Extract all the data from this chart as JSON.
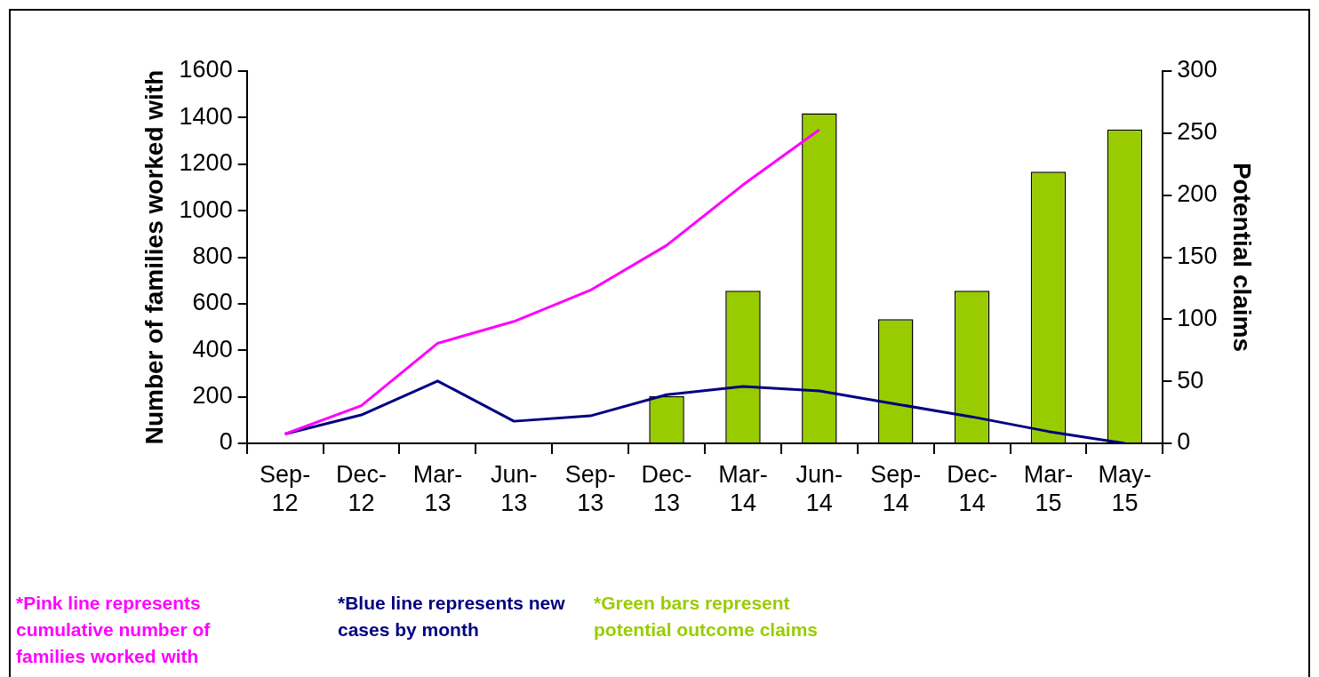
{
  "chart_data": {
    "type": "bar",
    "ylabel": "Number of families worked with",
    "y2label": "Potential claims",
    "categories": [
      "Sep-12",
      "Dec-12",
      "Mar-13",
      "Jun-13",
      "Sep-13",
      "Dec-13",
      "Mar-14",
      "Jun-14",
      "Sep-14",
      "Dec-14",
      "Mar-15",
      "May-15"
    ],
    "series": [
      {
        "type": "line",
        "color": "#ff00ff",
        "values": [
          40,
          162,
          430,
          524,
          658,
          851,
          1111,
          1348,
          null,
          null,
          null,
          null
        ]
      },
      {
        "type": "line",
        "color": "#000080",
        "values": [
          40,
          122,
          268,
          95,
          118,
          209,
          244,
          225,
          169,
          114,
          51,
          0
        ]
      },
      {
        "type": "bar",
        "axis": "y2",
        "color": "#99cc00",
        "values": [
          null,
          null,
          null,
          null,
          null,
          38,
          123,
          266,
          100,
          123,
          219,
          253
        ]
      }
    ],
    "ylim": [
      0,
      1600
    ],
    "yticks": [
      0,
      200,
      400,
      600,
      800,
      1000,
      1200,
      1400,
      1600
    ],
    "y2lim": [
      0,
      300
    ],
    "y2ticks": [
      0,
      50,
      100,
      150,
      200,
      250,
      300
    ],
    "grid": false,
    "legend": false,
    "annotations": [
      "*Pink line represents cumulative number of families worked with",
      "*Blue line represents new cases by month",
      "*Green bars represent potential outcome claims"
    ]
  }
}
